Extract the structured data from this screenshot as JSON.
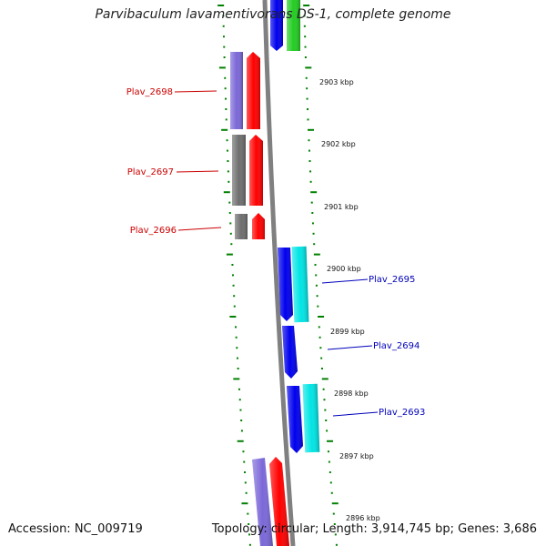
{
  "title": "Parvibaculum lavamentivorans DS-1, complete genome",
  "footer": {
    "accession": "Accession: NC_009719",
    "topology": "Topology: circular; Length: 3,914,745 bp; Genes: 3,686"
  },
  "colors": {
    "backbone": "#808080",
    "ticks": "#008000",
    "label_left": "#cc0000",
    "label_right": "#0000bb",
    "gene_purple": "#7b68d8",
    "gene_red": "#ff0000",
    "gene_gray": "#6e6e6e",
    "gene_blue": "#0000ee",
    "gene_cyan": "#00e5e5",
    "gene_green": "#22cc22"
  },
  "kbp_labels": [
    "2903 kbp",
    "2902 kbp",
    "2901 kbp",
    "2900 kbp",
    "2899 kbp",
    "2898 kbp",
    "2897 kbp",
    "2896 kbp"
  ],
  "gene_labels": {
    "left": [
      "Plav_2698",
      "Plav_2697",
      "Plav_2696"
    ],
    "right": [
      "Plav_2695",
      "Plav_2694",
      "Plav_2693"
    ]
  }
}
